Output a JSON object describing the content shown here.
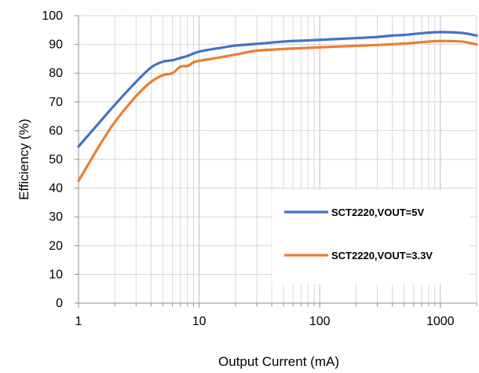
{
  "chart_data": {
    "type": "line",
    "title": "",
    "xlabel": "Output Current (mA)",
    "ylabel": "Efficiency (%)",
    "xscale": "log",
    "xlim": [
      1,
      2000
    ],
    "ylim": [
      0,
      100
    ],
    "x_ticks": [
      1,
      10,
      100,
      1000
    ],
    "x_tick_labels": [
      "1",
      "10",
      "100",
      "1000"
    ],
    "y_ticks": [
      0,
      10,
      20,
      30,
      40,
      50,
      60,
      70,
      80,
      90,
      100
    ],
    "y_tick_labels": [
      "0",
      "10",
      "20",
      "30",
      "40",
      "50",
      "60",
      "70",
      "80",
      "90",
      "100"
    ],
    "grid": true,
    "legend_position": "bottom-right",
    "series": [
      {
        "name": "SCT2220,VOUT=5V",
        "color": "#4472C4",
        "x": [
          1,
          1.5,
          2,
          3,
          4,
          5,
          6,
          7,
          8,
          10,
          15,
          20,
          30,
          50,
          70,
          100,
          200,
          300,
          400,
          500,
          700,
          1000,
          1500,
          2000
        ],
        "y": [
          54.5,
          63,
          69,
          77,
          82,
          84,
          84.5,
          85.3,
          86,
          87.5,
          88.8,
          89.6,
          90.2,
          91,
          91.3,
          91.6,
          92.2,
          92.6,
          93.1,
          93.3,
          93.9,
          94.3,
          94,
          93.1
        ]
      },
      {
        "name": "SCT2220,VOUT=3.3V",
        "color": "#ED7D31",
        "x": [
          1,
          1.5,
          2,
          3,
          4,
          5,
          6,
          7,
          8,
          9,
          10,
          15,
          20,
          30,
          50,
          70,
          100,
          200,
          300,
          500,
          700,
          1000,
          1500,
          2000
        ],
        "y": [
          42.5,
          55,
          63,
          72,
          77,
          79.3,
          80,
          82.3,
          82.5,
          83.8,
          84.3,
          85.5,
          86.5,
          87.8,
          88.4,
          88.7,
          89,
          89.5,
          89.8,
          90.3,
          90.8,
          91.2,
          91,
          90
        ]
      }
    ]
  }
}
